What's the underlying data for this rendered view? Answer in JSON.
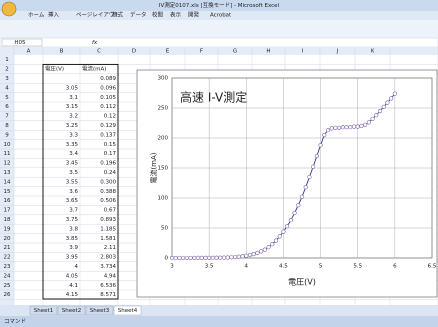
{
  "window": {
    "title": "IV測定0107.xls [互換モード] - Microsoft Excel"
  },
  "ribbon": {
    "tabs": [
      "ホーム",
      "挿入",
      "ページレイアウト",
      "数式",
      "データ",
      "校閲",
      "表示",
      "開発",
      "Acrobat"
    ]
  },
  "formula_bar": {
    "name_box": "H05",
    "fx": "fx"
  },
  "sheet": {
    "columns": [
      "A",
      "B",
      "C",
      "D",
      "E",
      "F",
      "G",
      "H",
      "I",
      "J",
      "K"
    ],
    "rows": [
      "1",
      "2",
      "3",
      "4",
      "5",
      "6",
      "7",
      "8",
      "9",
      "10",
      "11",
      "12",
      "13",
      "14",
      "15",
      "16",
      "17",
      "18",
      "19",
      "20",
      "21",
      "22",
      "23",
      "24",
      "25",
      "26"
    ],
    "table": {
      "header": [
        "電圧(V)",
        "電流(mA)"
      ],
      "rows": [
        [
          null,
          "0.089"
        ],
        [
          "3.05",
          "0.096"
        ],
        [
          "3.1",
          "0.105"
        ],
        [
          "3.15",
          "0.112"
        ],
        [
          "3.2",
          "0.12"
        ],
        [
          "3.25",
          "0.129"
        ],
        [
          "3.3",
          "0.137"
        ],
        [
          "3.35",
          "0.15"
        ],
        [
          "3.4",
          "0.17"
        ],
        [
          "3.45",
          "0.196"
        ],
        [
          "3.5",
          "0.24"
        ],
        [
          "3.55",
          "0.300"
        ],
        [
          "3.6",
          "0.388"
        ],
        [
          "3.65",
          "0.506"
        ],
        [
          "3.7",
          "0.67"
        ],
        [
          "3.75",
          "0.893"
        ],
        [
          "3.8",
          "1.185"
        ],
        [
          "3.85",
          "1.581"
        ],
        [
          "3.9",
          "2.11"
        ],
        [
          "3.95",
          "2.803"
        ],
        [
          "4",
          "3.734"
        ],
        [
          "4.05",
          "4.94"
        ],
        [
          "4.1",
          "6.536"
        ],
        [
          "4.15",
          "8.571"
        ]
      ]
    },
    "tabs": [
      "Sheet1",
      "Sheet2",
      "Sheet3",
      "Sheet4"
    ],
    "status": "コマンド"
  },
  "chart_data": {
    "type": "line",
    "title": "高速 I-V測定",
    "x_label": "電圧(V)",
    "y_label": "電流(mA)",
    "xlim": [
      3,
      6.5
    ],
    "xticks": [
      3,
      3.5,
      4,
      4.5,
      5,
      5.5,
      6,
      6.5
    ],
    "ylim": [
      0,
      300
    ],
    "yticks": [
      0,
      50,
      100,
      150,
      200,
      250,
      300
    ],
    "grid": true,
    "color": "#2b3a8c",
    "marker_color": "#7b5fa8",
    "x": [
      3,
      3.05,
      3.1,
      3.15,
      3.2,
      3.25,
      3.3,
      3.35,
      3.4,
      3.45,
      3.5,
      3.55,
      3.6,
      3.65,
      3.7,
      3.75,
      3.8,
      3.85,
      3.9,
      3.95,
      4,
      4.05,
      4.1,
      4.15,
      4.2,
      4.25,
      4.3,
      4.35,
      4.4,
      4.45,
      4.5,
      4.55,
      4.6,
      4.65,
      4.7,
      4.75,
      4.8,
      4.85,
      4.9,
      4.95,
      5,
      5.05,
      5.1,
      5.15,
      5.2,
      5.25,
      5.3,
      5.35,
      5.4,
      5.45,
      5.5,
      5.55,
      5.6,
      5.65,
      5.7,
      5.75,
      5.8,
      5.85,
      5.9,
      5.95,
      6
    ],
    "values": [
      0.089,
      0.096,
      0.105,
      0.112,
      0.12,
      0.129,
      0.137,
      0.15,
      0.17,
      0.196,
      0.24,
      0.3,
      0.388,
      0.506,
      0.67,
      0.893,
      1.185,
      1.581,
      2.11,
      2.803,
      3.734,
      4.94,
      6.536,
      8.571,
      11,
      14,
      18,
      23,
      29,
      36,
      44,
      53,
      63,
      75,
      88,
      102,
      118,
      135,
      152,
      170,
      188,
      205,
      213,
      216,
      217,
      217,
      218,
      218,
      218,
      219,
      219,
      220,
      222,
      226,
      232,
      238,
      245,
      252,
      259,
      266,
      274
    ]
  }
}
